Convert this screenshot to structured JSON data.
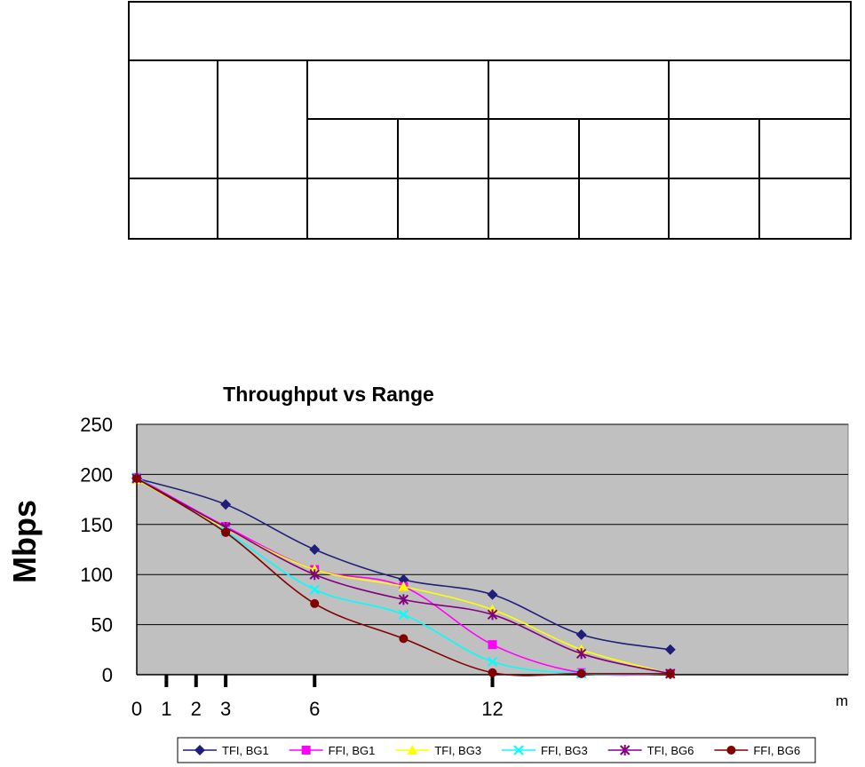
{
  "chart_data": {
    "type": "line",
    "title": "Throughput vs Range",
    "ylabel": "Mbps",
    "xlabel": "m",
    "ylim": [
      0,
      250
    ],
    "yticks": [
      0,
      50,
      100,
      150,
      200,
      250
    ],
    "x_tick_labels": [
      {
        "x": 0,
        "label": "0"
      },
      {
        "x": 1,
        "label": "1"
      },
      {
        "x": 2,
        "label": "2"
      },
      {
        "x": 3,
        "label": "3"
      },
      {
        "x": 6,
        "label": "6"
      },
      {
        "x": 12,
        "label": "12"
      }
    ],
    "x_marker_ticks": [
      1,
      2,
      3,
      6,
      12
    ],
    "x_end": 24,
    "grid": true,
    "legend_position": "bottom",
    "series": [
      {
        "name": "TFI, BG1",
        "color": "#1f1f7a",
        "marker": "diamond",
        "x": [
          0,
          3,
          6,
          9,
          12,
          15,
          18
        ],
        "values": [
          196,
          170,
          125,
          95,
          80,
          40,
          25
        ]
      },
      {
        "name": "FFI, BG1",
        "color": "#ff00ff",
        "marker": "square",
        "x": [
          0,
          3,
          6,
          9,
          12,
          15,
          18
        ],
        "values": [
          197,
          148,
          105,
          88,
          30,
          2,
          1
        ]
      },
      {
        "name": "TFI, BG3",
        "color": "#ffff00",
        "marker": "triangle",
        "x": [
          0,
          3,
          6,
          9,
          12,
          15,
          18
        ],
        "values": [
          195,
          146,
          105,
          88,
          65,
          25,
          1
        ]
      },
      {
        "name": "FFI, BG3",
        "color": "#00ffff",
        "marker": "x",
        "x": [
          0,
          3,
          6,
          9,
          12,
          15,
          18
        ],
        "values": [
          197,
          143,
          85,
          60,
          13,
          1,
          1
        ]
      },
      {
        "name": "TFI, BG6",
        "color": "#800080",
        "marker": "star",
        "x": [
          0,
          3,
          6,
          9,
          12,
          15,
          18
        ],
        "values": [
          196,
          147,
          100,
          75,
          60,
          21,
          1
        ]
      },
      {
        "name": "FFI, BG6",
        "color": "#800000",
        "marker": "circle",
        "x": [
          0,
          3,
          6,
          9,
          12,
          15,
          18
        ],
        "values": [
          196,
          142,
          71,
          36,
          2,
          1,
          1
        ]
      }
    ]
  }
}
